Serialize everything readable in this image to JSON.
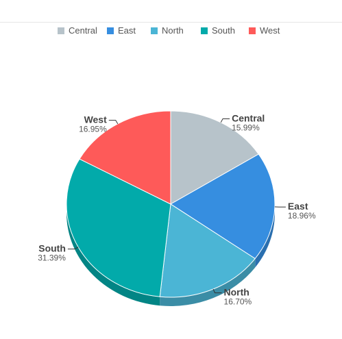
{
  "legend": {
    "items": [
      {
        "label": "Central",
        "color": "#b7c3ca"
      },
      {
        "label": "East",
        "color": "#368ee0"
      },
      {
        "label": "North",
        "color": "#4bb5d5"
      },
      {
        "label": "South",
        "color": "#02aaaa"
      },
      {
        "label": "West",
        "color": "#fe5a59"
      }
    ]
  },
  "chart_data": {
    "type": "pie",
    "title": "",
    "three_d": true,
    "legend_position": "top",
    "categories": [
      "Central",
      "East",
      "North",
      "South",
      "West"
    ],
    "values": [
      15.99,
      18.96,
      16.7,
      31.39,
      16.95
    ],
    "labels": [
      "15.99%",
      "18.96%",
      "16.70%",
      "31.39%",
      "16.95%"
    ],
    "colors": [
      "#b7c3ca",
      "#368ee0",
      "#4bb5d5",
      "#02aaaa",
      "#fe5a59"
    ]
  }
}
